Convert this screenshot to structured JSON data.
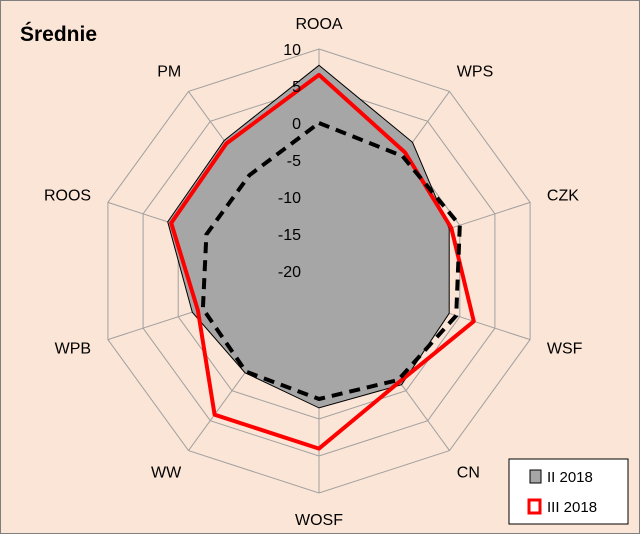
{
  "chart_data": {
    "type": "radar",
    "title": "Średnie",
    "categories": [
      "ROOA",
      "WPS",
      "CZK",
      "WSF",
      "CN",
      "WOSF",
      "WW",
      "WPB",
      "ROOS",
      "PM"
    ],
    "rticks": [
      10,
      5,
      0,
      -5,
      -10,
      -15,
      -20
    ],
    "rlim": [
      -20,
      10
    ],
    "grid": true,
    "legend_position": "bottom-right",
    "series": [
      {
        "name": "II 2018",
        "style": "filled",
        "fill": "#a6a6a6",
        "stroke": "#000000",
        "values": [
          7.8,
          1.5,
          -1.5,
          -1.5,
          -1.0,
          -1.5,
          -3.0,
          -2.0,
          1.5,
          1.8
        ]
      },
      {
        "name": "III 2018",
        "style": "line",
        "stroke": "#ff0000",
        "values": [
          6.5,
          -0.2,
          -1.2,
          2.0,
          -1.5,
          4.0,
          4.0,
          -2.8,
          1.0,
          1.3
        ]
      },
      {
        "name": "",
        "style": "dashed",
        "stroke": "#000000",
        "values": [
          0.0,
          -0.8,
          0.0,
          -0.5,
          -1.8,
          -2.7,
          -3.2,
          -3.5,
          -4.0,
          -4.0
        ]
      }
    ]
  }
}
